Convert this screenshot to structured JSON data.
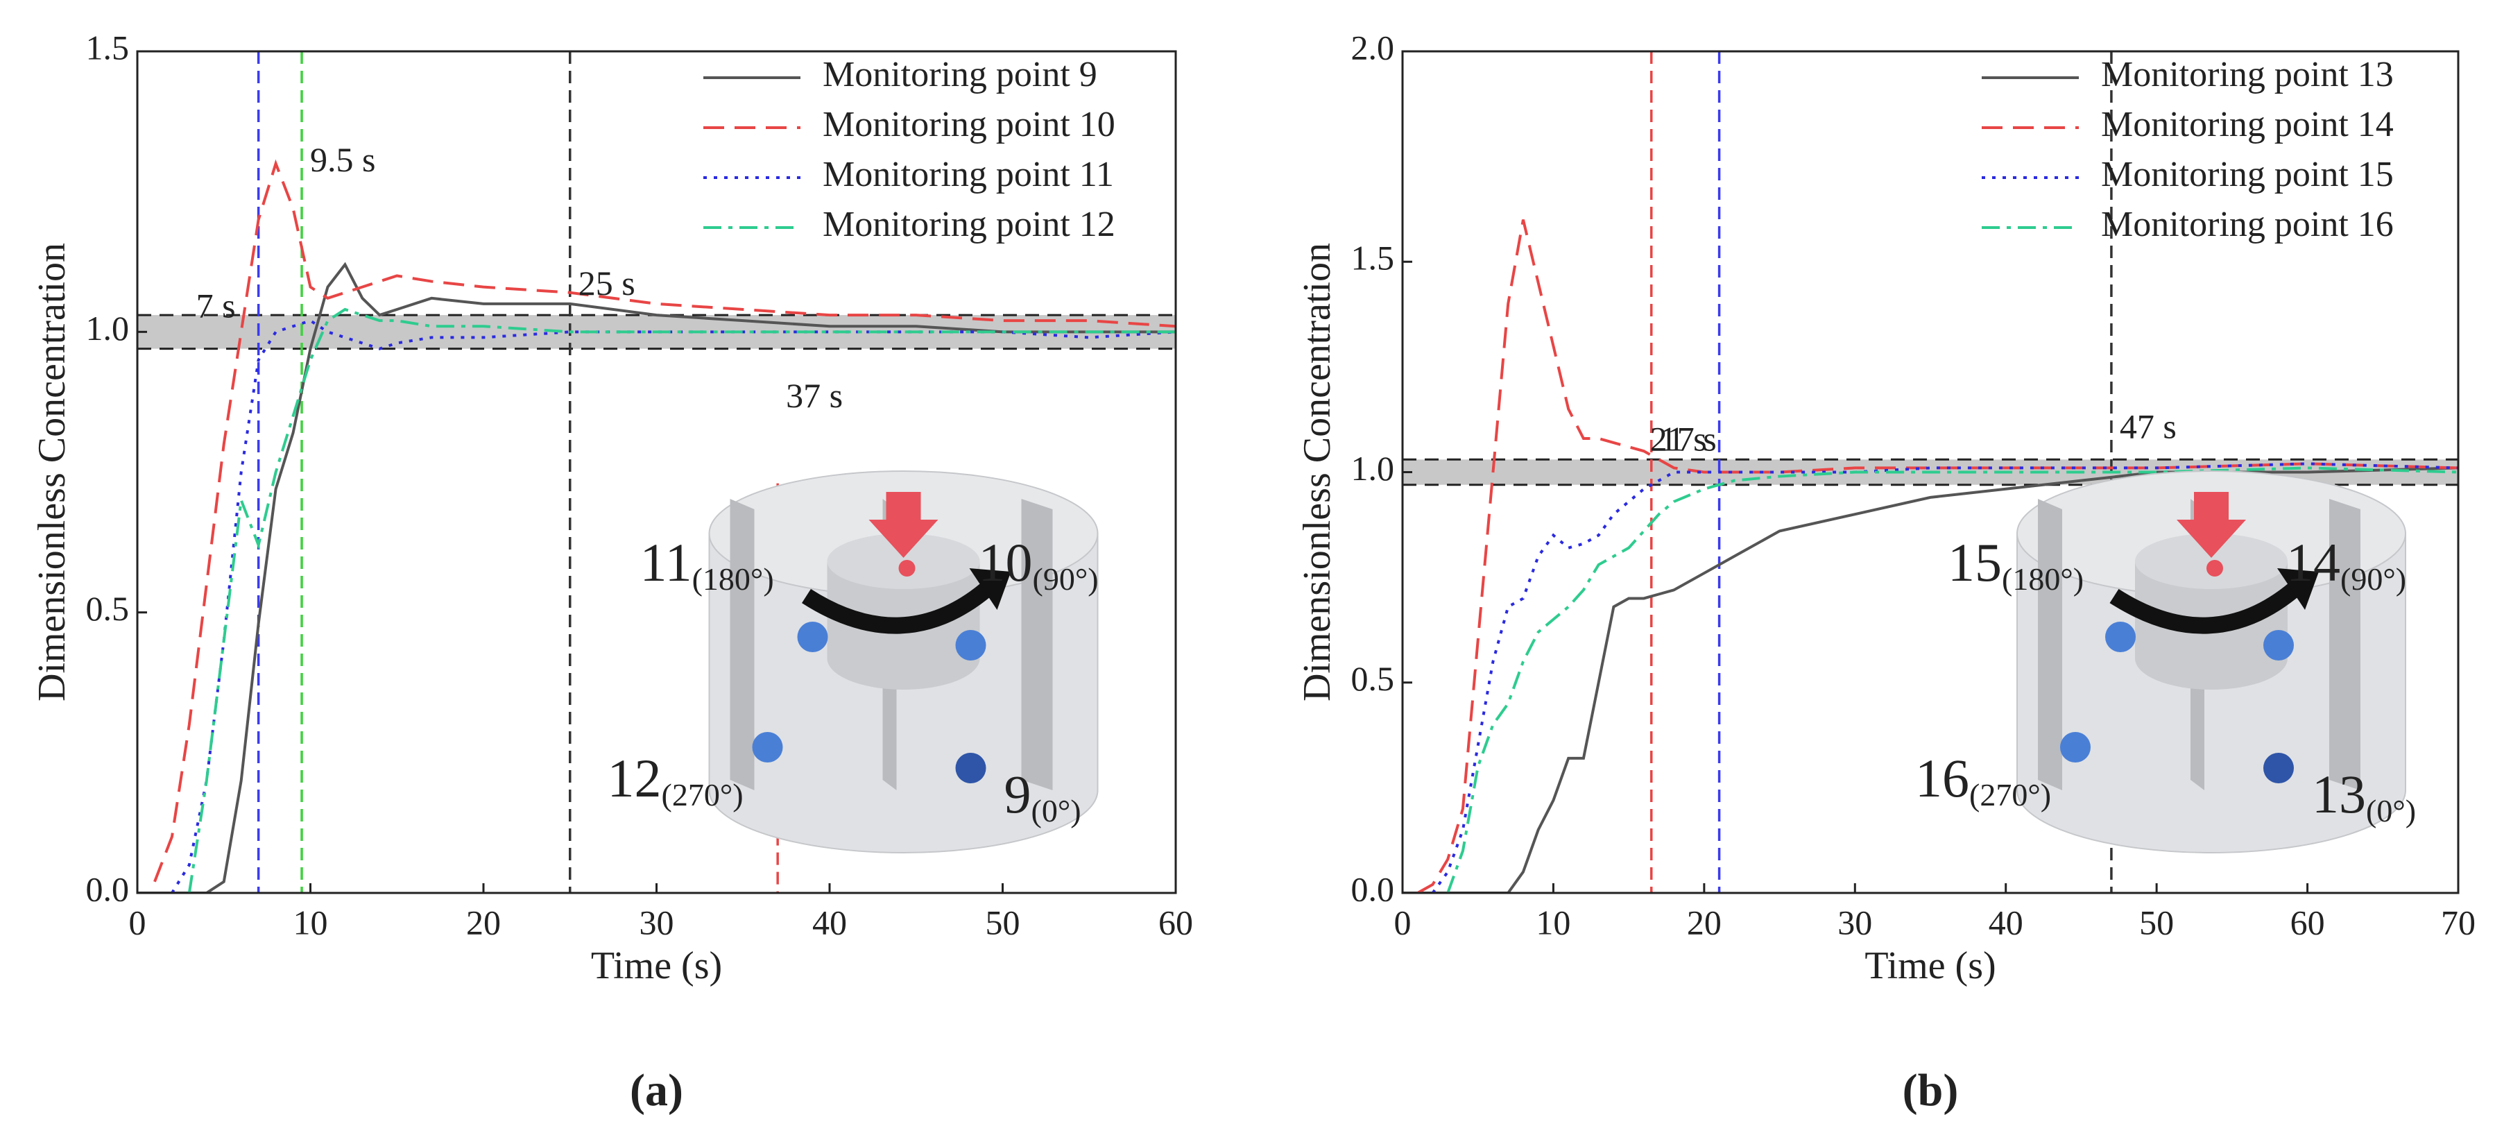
{
  "chart_data": [
    {
      "type": "line",
      "caption": "(a)",
      "xlabel": "Time (s)",
      "ylabel": "Dimensionless Concentration",
      "xlim": [
        0,
        60
      ],
      "ylim": [
        0,
        1.5
      ],
      "xticks": [
        0,
        10,
        20,
        30,
        40,
        50,
        60
      ],
      "yticks": [
        {
          "value": 0,
          "label": "0.0"
        },
        0.5,
        {
          "value": 1,
          "label": "1.0"
        },
        1.5
      ],
      "band": [
        0.97,
        1.03
      ],
      "x": [
        0,
        1,
        2,
        3,
        4,
        5,
        6,
        7,
        8,
        9,
        10,
        11,
        12,
        13,
        14,
        15,
        17,
        20,
        25,
        30,
        35,
        40,
        45,
        50,
        55,
        60
      ],
      "series": [
        {
          "name": "Monitoring point 9",
          "color": "#555555",
          "values": [
            0,
            0,
            0,
            0,
            0,
            0.02,
            0.2,
            0.48,
            0.72,
            0.82,
            0.97,
            1.08,
            1.12,
            1.06,
            1.03,
            1.04,
            1.06,
            1.05,
            1.05,
            1.03,
            1.02,
            1.01,
            1.01,
            1.0,
            1.0,
            1.0
          ]
        },
        {
          "name": "Monitoring point 10",
          "color": "#e84545",
          "values": [
            null,
            0.02,
            0.1,
            0.3,
            0.55,
            0.8,
            1.0,
            1.2,
            1.3,
            1.22,
            1.08,
            1.06,
            1.07,
            1.08,
            1.09,
            1.1,
            1.09,
            1.08,
            1.07,
            1.05,
            1.04,
            1.03,
            1.03,
            1.02,
            1.02,
            1.01
          ]
        },
        {
          "name": "Monitoring point 11",
          "color": "#2a2ae0",
          "values": [
            null,
            null,
            0,
            0.05,
            0.2,
            0.45,
            0.75,
            0.95,
            1.0,
            1.01,
            1.02,
            1.0,
            0.99,
            0.98,
            0.97,
            0.98,
            0.99,
            0.99,
            1.0,
            1.0,
            1.0,
            1.0,
            1.0,
            1.0,
            0.99,
            1.0
          ]
        },
        {
          "name": "Monitoring point 12",
          "color": "#2ecc8f",
          "values": [
            null,
            null,
            null,
            0,
            0.2,
            0.45,
            0.7,
            0.62,
            0.75,
            0.85,
            0.95,
            1.02,
            1.04,
            1.03,
            1.02,
            1.02,
            1.01,
            1.01,
            1.0,
            1.0,
            1.0,
            1.0,
            1.0,
            1.0,
            1.0,
            1.0
          ]
        }
      ],
      "vlines": [
        {
          "x": 7,
          "color": "#3b3bf0",
          "label": "7 s",
          "label_color": "#3b3bf0"
        },
        {
          "x": 9.5,
          "color": "#3fd13f",
          "label": "9.5 s",
          "label_color": "#2ecc8f"
        },
        {
          "x": 25,
          "color": "#333333",
          "label": "25 s",
          "label_color": "#222222"
        },
        {
          "x": 37,
          "color": "#e84545",
          "label": "37 s",
          "label_color": "#e84545",
          "span": [
            0,
            0.73
          ]
        }
      ],
      "inset_labels": [
        {
          "point": "11",
          "angle": "(180°)"
        },
        {
          "point": "10",
          "angle": "(90°)"
        },
        {
          "point": "12",
          "angle": "(270°)"
        },
        {
          "point": "9",
          "angle": "(0°)"
        }
      ]
    },
    {
      "type": "line",
      "caption": "(b)",
      "xlabel": "Time (s)",
      "ylabel": "Dimensionless Concentration",
      "xlim": [
        0,
        70
      ],
      "ylim": [
        0,
        2
      ],
      "xticks": [
        0,
        10,
        20,
        30,
        40,
        50,
        60,
        70
      ],
      "yticks": [
        {
          "value": 0,
          "label": "0.0"
        },
        0.5,
        {
          "value": 1,
          "label": "1.0"
        },
        1.5,
        {
          "value": 2,
          "label": "2.0"
        }
      ],
      "band": [
        0.97,
        1.03
      ],
      "x": [
        0,
        1,
        2,
        3,
        4,
        5,
        6,
        7,
        8,
        9,
        10,
        11,
        12,
        13,
        14,
        15,
        16,
        17,
        18,
        20,
        22,
        25,
        30,
        35,
        40,
        45,
        50,
        60,
        70
      ],
      "series": [
        {
          "name": "Monitoring point 13",
          "color": "#555555",
          "values": [
            0,
            0,
            0,
            0,
            0,
            0,
            0,
            0,
            0.05,
            0.15,
            0.22,
            0.32,
            0.32,
            0.5,
            0.68,
            0.7,
            0.7,
            0.71,
            0.72,
            0.76,
            0.8,
            0.86,
            0.9,
            0.94,
            0.96,
            0.98,
            1.0,
            1.0,
            1.01
          ]
        },
        {
          "name": "Monitoring point 14",
          "color": "#e84545",
          "values": [
            null,
            0,
            0.02,
            0.08,
            0.2,
            0.6,
            1.0,
            1.4,
            1.6,
            1.45,
            1.3,
            1.15,
            1.08,
            1.08,
            1.07,
            1.06,
            1.05,
            1.03,
            1.01,
            1.0,
            1.0,
            1.0,
            1.01,
            1.01,
            1.01,
            1.01,
            1.01,
            1.02,
            1.01
          ]
        },
        {
          "name": "Monitoring point 15",
          "color": "#2a2ae0",
          "values": [
            null,
            null,
            0,
            0.05,
            0.15,
            0.35,
            0.55,
            0.68,
            0.7,
            0.8,
            0.85,
            0.82,
            0.83,
            0.85,
            0.9,
            0.93,
            0.96,
            0.98,
            1.0,
            1.0,
            1.0,
            1.0,
            1.0,
            1.01,
            1.01,
            1.01,
            1.01,
            1.02,
            1.01
          ]
        },
        {
          "name": "Monitoring point 16",
          "color": "#2ecc8f",
          "values": [
            null,
            null,
            null,
            0,
            0.1,
            0.3,
            0.4,
            0.45,
            0.55,
            0.62,
            0.65,
            0.68,
            0.72,
            0.78,
            0.8,
            0.82,
            0.86,
            0.9,
            0.93,
            0.96,
            0.98,
            0.99,
            1.0,
            1.0,
            1.0,
            1.0,
            1.0,
            1.01,
            1.0
          ]
        }
      ],
      "vlines": [
        {
          "x": 16.5,
          "color": "#e84545",
          "label": "17 s",
          "label_color": "#e84545"
        },
        {
          "x": 21,
          "color": "#3b3bf0",
          "label": "21 s",
          "label_color": "#3b3bf0"
        },
        {
          "x": 47,
          "color": "#333333",
          "label": "47 s",
          "label_color": "#222222"
        }
      ],
      "inset_labels": [
        {
          "point": "15",
          "angle": "(180°)"
        },
        {
          "point": "14",
          "angle": "(90°)"
        },
        {
          "point": "16",
          "angle": "(270°)"
        },
        {
          "point": "13",
          "angle": "(0°)"
        }
      ]
    }
  ]
}
